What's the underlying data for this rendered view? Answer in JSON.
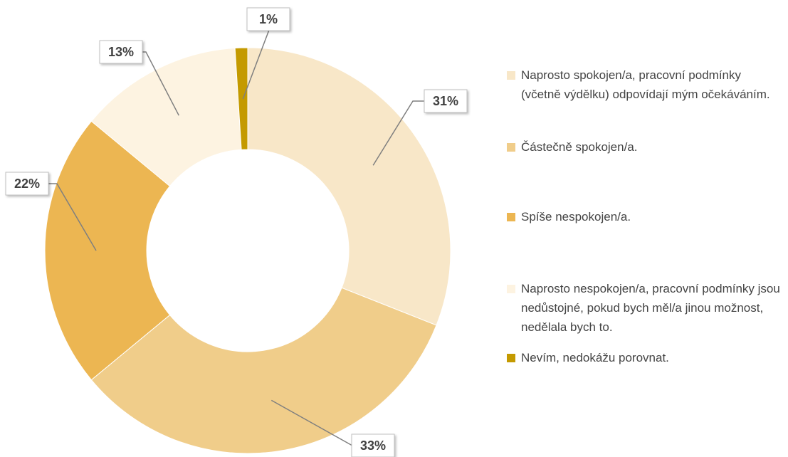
{
  "chart_data": {
    "type": "donut",
    "categories": [
      "Naprosto spokojen/a, pracovní podmínky (včetně výdělku) odpovídají mým očekáváním.",
      "Částečně spokojen/a.",
      "Spíše nespokojen/a.",
      "Naprosto nespokojen/a, pracovní podmínky jsou nedůstojné, pokud bych měl/a jinou možnost, nedělala bych to.",
      "Nevím, nedokážu porovnat."
    ],
    "values": [
      31,
      33,
      22,
      13,
      1
    ],
    "value_labels": [
      "31%",
      "33%",
      "22%",
      "13%",
      "1%"
    ],
    "colors": [
      "#f8e7c8",
      "#f0cd8a",
      "#ecb652",
      "#fdf3e1",
      "#c49a00"
    ],
    "legend": "right"
  }
}
